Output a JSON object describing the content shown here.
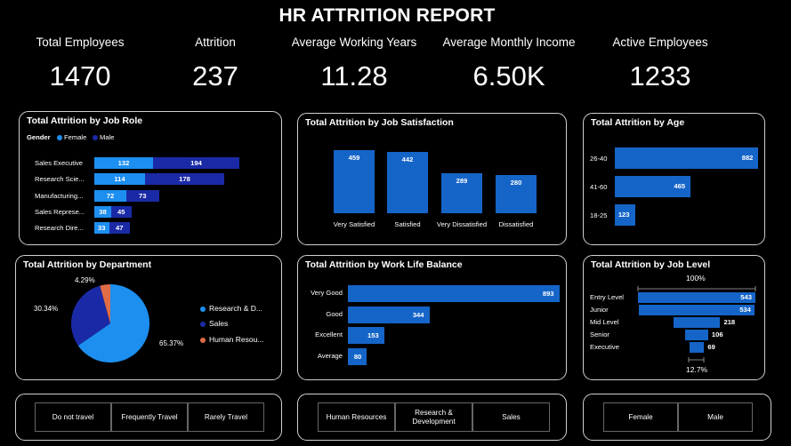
{
  "title": "HR ATTRITION REPORT",
  "kpis": [
    {
      "label": "Total Employees",
      "value": "1470"
    },
    {
      "label": "Attrition",
      "value": "237"
    },
    {
      "label": "Average Working Years",
      "value": "11.28"
    },
    {
      "label": "Average Monthly Income",
      "value": "6.50K"
    },
    {
      "label": "Active Employees",
      "value": "1233"
    }
  ],
  "colors": {
    "female": "#1d8ff0",
    "male": "#1a2aa6",
    "bar": "#1565c8",
    "hr": "#e06c47"
  },
  "job_role": {
    "title": "Total Attrition by Job Role",
    "legend_title": "Gender",
    "legend": [
      "Female",
      "Male"
    ],
    "rows": [
      {
        "label": "Sales Executive",
        "female": 132,
        "male": 194
      },
      {
        "label": "Research Scie...",
        "female": 114,
        "male": 178
      },
      {
        "label": "Manufacturing...",
        "female": 72,
        "male": 73
      },
      {
        "label": "Sales Represe...",
        "female": 38,
        "male": 45
      },
      {
        "label": "Research Dire...",
        "female": 33,
        "male": 47
      }
    ]
  },
  "job_satisfaction": {
    "title": "Total Attrition by Job Satisfaction",
    "bars": [
      {
        "label": "Very Satisfied",
        "value": 459
      },
      {
        "label": "Satisfied",
        "value": 442
      },
      {
        "label": "Very Dissatisfied",
        "value": 289
      },
      {
        "label": "Dissatisfied",
        "value": 280
      }
    ]
  },
  "age": {
    "title": "Total Attrition by Age",
    "bars": [
      {
        "label": "26-40",
        "value": 882
      },
      {
        "label": "41-60",
        "value": 465
      },
      {
        "label": "18-25",
        "value": 123
      }
    ]
  },
  "department": {
    "title": "Total Attrition by Department",
    "slices": [
      {
        "label": "Research & D...",
        "pct": 65.37,
        "pct_label": "65.37%",
        "color": "#1d8ff0"
      },
      {
        "label": "Sales",
        "pct": 30.34,
        "pct_label": "30.34%",
        "color": "#1a2aa6"
      },
      {
        "label": "Human Resou...",
        "pct": 4.29,
        "pct_label": "4.29%",
        "color": "#e06c47"
      }
    ]
  },
  "work_life": {
    "title": "Total Attrition by Work Life Balance",
    "bars": [
      {
        "label": "Very Good",
        "value": 893
      },
      {
        "label": "Good",
        "value": 344
      },
      {
        "label": "Excellent",
        "value": 153
      },
      {
        "label": "Average",
        "value": 80
      }
    ]
  },
  "job_level": {
    "title": "Total Attrition by Job Level",
    "top_label": "100%",
    "bottom_label": "12.7%",
    "bars": [
      {
        "label": "Entry Level",
        "value": 543
      },
      {
        "label": "Junior",
        "value": 534
      },
      {
        "label": "Mid Level",
        "value": 218
      },
      {
        "label": "Senior",
        "value": 106
      },
      {
        "label": "Executive",
        "value": 69
      }
    ]
  },
  "slicers": {
    "travel": [
      "Do not travel",
      "Frequently Travel",
      "Rarely Travel"
    ],
    "department": [
      "Human Resources",
      "Research & Development",
      "Sales"
    ],
    "gender": [
      "Female",
      "Male"
    ]
  }
}
